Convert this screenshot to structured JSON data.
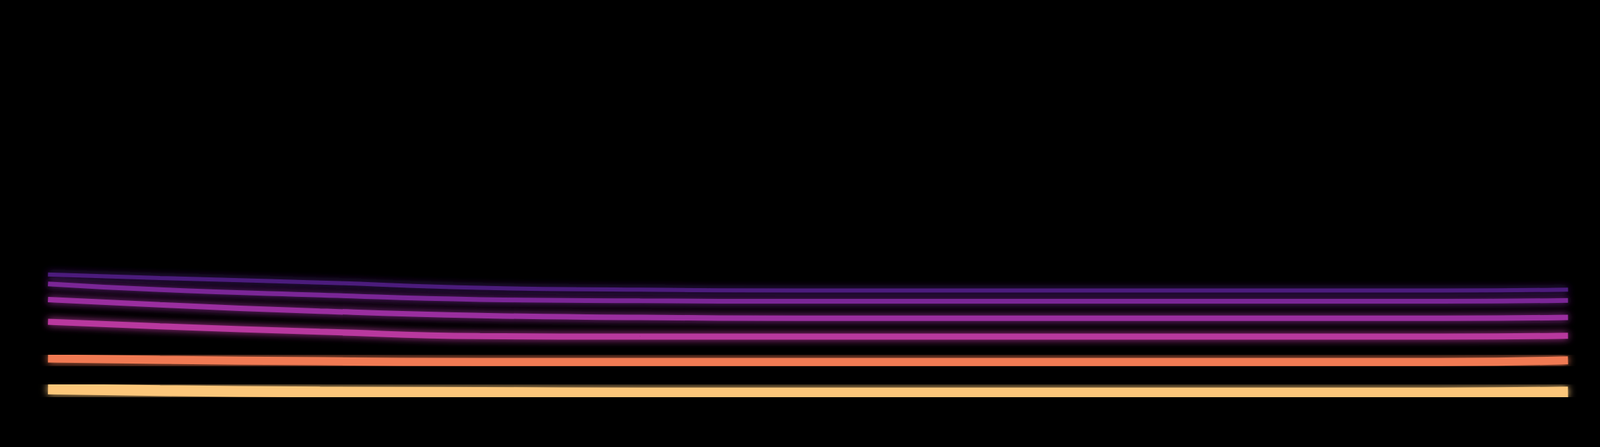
{
  "chart_data": {
    "type": "line",
    "x": [
      3,
      10,
      20,
      30,
      40,
      50,
      60,
      70,
      80,
      90,
      98
    ],
    "xlim": [
      0,
      100
    ],
    "ylim": [
      0,
      100
    ],
    "tick_labels": false,
    "grid": false,
    "series": [
      {
        "color": "#fcc77a",
        "values": [
          13.0,
          12.6,
          12.3,
          12.2,
          12.1,
          12.1,
          12.1,
          12.1,
          12.1,
          12.1,
          12.3
        ]
      },
      {
        "color": "#f07a52",
        "values": [
          19.8,
          19.5,
          19.2,
          19.0,
          19.0,
          19.0,
          19.0,
          19.0,
          19.0,
          19.0,
          19.4
        ]
      },
      {
        "color": "#b8379e",
        "values": [
          28.0,
          27.0,
          25.8,
          24.8,
          24.7,
          24.7,
          24.7,
          24.7,
          24.7,
          24.7,
          24.9
        ]
      },
      {
        "color": "#9a2f9f",
        "values": [
          33.0,
          31.8,
          30.4,
          29.4,
          29.0,
          28.8,
          28.8,
          28.8,
          28.8,
          28.8,
          29.0
        ]
      },
      {
        "color": "#7a2596",
        "values": [
          36.5,
          35.2,
          34.0,
          33.0,
          32.7,
          32.6,
          32.6,
          32.6,
          32.6,
          32.6,
          32.8
        ]
      },
      {
        "color": "#4c1b7c",
        "values": [
          38.6,
          37.8,
          36.8,
          35.6,
          35.2,
          35.0,
          35.0,
          35.0,
          35.0,
          35.0,
          35.2
        ]
      }
    ]
  }
}
